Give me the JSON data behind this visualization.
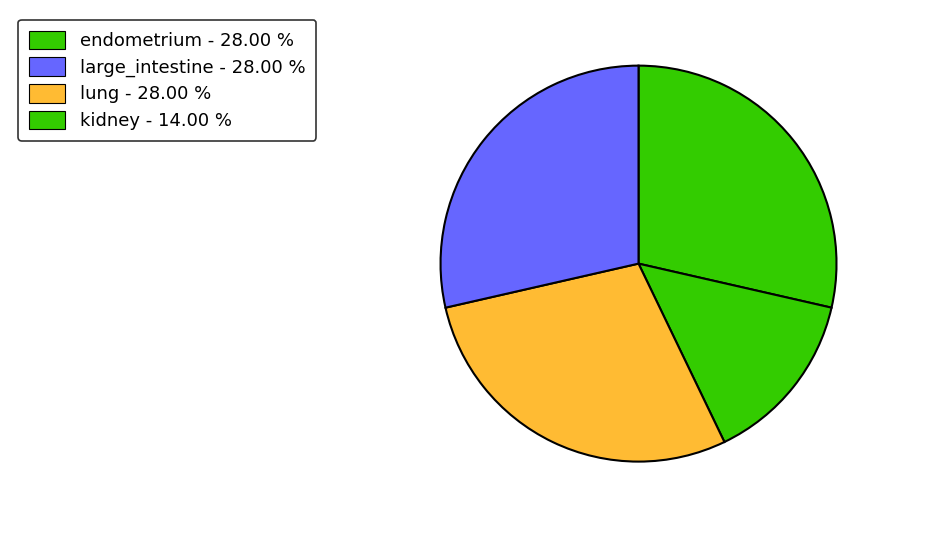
{
  "labels": [
    "endometrium",
    "kidney",
    "lung",
    "large_intestine"
  ],
  "sizes": [
    28,
    14,
    28,
    28
  ],
  "colors": [
    "#33cc00",
    "#33cc00",
    "#ffbb33",
    "#6666ff"
  ],
  "startangle": 90,
  "counterclock": false,
  "legend_labels": [
    "endometrium - 28.00 %",
    "large_intestine - 28.00 %",
    "lung - 28.00 %",
    "kidney - 14.00 %"
  ],
  "legend_colors": [
    "#33cc00",
    "#6666ff",
    "#ffbb33",
    "#33cc00"
  ],
  "edgecolor": "black",
  "linewidth": 1.5,
  "figure_width": 9.39,
  "figure_height": 5.38,
  "dpi": 100
}
